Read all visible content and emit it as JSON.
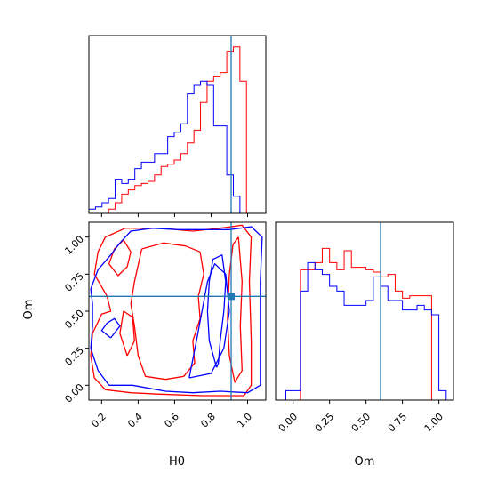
{
  "chart_data": {
    "type": "corner",
    "truth": {
      "H0": 0.91,
      "Om": 0.6
    },
    "colors": {
      "series_a": "#ff0000",
      "series_b": "#0000ff",
      "truth": "#1f77b4"
    },
    "panels": [
      {
        "id": "hist-h0",
        "type": "histogram",
        "xlim": [
          0.13,
          1.1
        ],
        "bin_edges": [
          0.13,
          0.166,
          0.202,
          0.238,
          0.274,
          0.31,
          0.346,
          0.382,
          0.418,
          0.454,
          0.49,
          0.526,
          0.562,
          0.598,
          0.634,
          0.67,
          0.706,
          0.742,
          0.778,
          0.814,
          0.85,
          0.886,
          0.922,
          0.958,
          0.994,
          1.03
        ],
        "series": [
          {
            "color": "red",
            "values": [
              0,
              0,
              0,
              2,
              5,
              9,
              11,
              13,
              14,
              15,
              18,
              22,
              23,
              25,
              28,
              33,
              39,
              52,
              62,
              64,
              66,
              76,
              78,
              62,
              0
            ]
          },
          {
            "color": "blue",
            "values": [
              2,
              3,
              5,
              7,
              16,
              14,
              16,
              21,
              24,
              24,
              28,
              28,
              36,
              38,
              42,
              56,
              60,
              62,
              60,
              41,
              41,
              18,
              8,
              0,
              0
            ]
          }
        ],
        "xticks": [
          0.2,
          0.4,
          0.6,
          0.8,
          1.0
        ]
      },
      {
        "id": "contour-h0-om",
        "type": "contour",
        "xlabel": "H0",
        "ylabel": "Om",
        "xlim": [
          0.13,
          1.1
        ],
        "ylim": [
          -0.1,
          1.1
        ],
        "xtick_labels": [
          "0.2",
          "0.4",
          "0.6",
          "0.8",
          "1.0"
        ],
        "xticks": [
          0.2,
          0.4,
          0.6,
          0.8,
          1.0
        ],
        "ytick_labels": [
          "0.00",
          "0.25",
          "0.50",
          "0.75",
          "1.00"
        ],
        "yticks": [
          0.0,
          0.25,
          0.5,
          0.75,
          1.0
        ],
        "contours": [
          {
            "color": "red",
            "points": [
              [
                0.36,
                -0.05
              ],
              [
                0.22,
                -0.03
              ],
              [
                0.16,
                0.05
              ],
              [
                0.14,
                0.2
              ],
              [
                0.15,
                0.35
              ],
              [
                0.2,
                0.48
              ],
              [
                0.25,
                0.5
              ],
              [
                0.23,
                0.6
              ],
              [
                0.16,
                0.75
              ],
              [
                0.18,
                0.9
              ],
              [
                0.22,
                1.0
              ],
              [
                0.33,
                1.06
              ],
              [
                0.52,
                1.06
              ],
              [
                0.7,
                1.04
              ],
              [
                0.85,
                1.06
              ],
              [
                0.97,
                1.08
              ],
              [
                1.02,
                1.0
              ],
              [
                1.01,
                0.7
              ],
              [
                1.02,
                0.3
              ],
              [
                1.02,
                0.0
              ],
              [
                0.98,
                -0.07
              ],
              [
                0.75,
                -0.07
              ],
              [
                0.52,
                -0.06
              ],
              [
                0.36,
                -0.05
              ]
            ]
          },
          {
            "color": "red",
            "points": [
              [
                0.32,
                0.98
              ],
              [
                0.27,
                0.92
              ],
              [
                0.24,
                0.82
              ],
              [
                0.29,
                0.74
              ],
              [
                0.34,
                0.8
              ],
              [
                0.36,
                0.9
              ],
              [
                0.32,
                0.98
              ]
            ]
          },
          {
            "color": "red",
            "points": [
              [
                0.42,
                0.92
              ],
              [
                0.54,
                0.96
              ],
              [
                0.66,
                0.94
              ],
              [
                0.74,
                0.9
              ],
              [
                0.76,
                0.75
              ],
              [
                0.73,
                0.6
              ],
              [
                0.74,
                0.45
              ],
              [
                0.7,
                0.3
              ],
              [
                0.71,
                0.15
              ],
              [
                0.65,
                0.06
              ],
              [
                0.55,
                0.04
              ],
              [
                0.44,
                0.06
              ],
              [
                0.4,
                0.2
              ],
              [
                0.38,
                0.4
              ],
              [
                0.36,
                0.55
              ],
              [
                0.38,
                0.7
              ],
              [
                0.42,
                0.92
              ]
            ]
          },
          {
            "color": "red",
            "points": [
              [
                0.95,
                1.0
              ],
              [
                0.97,
                0.7
              ],
              [
                0.96,
                0.4
              ],
              [
                0.97,
                0.1
              ],
              [
                0.93,
                0.02
              ],
              [
                0.9,
                0.2
              ],
              [
                0.89,
                0.45
              ],
              [
                0.9,
                0.75
              ],
              [
                0.92,
                0.95
              ],
              [
                0.95,
                1.0
              ]
            ]
          },
          {
            "color": "red",
            "points": [
              [
                0.34,
                0.2
              ],
              [
                0.3,
                0.35
              ],
              [
                0.32,
                0.5
              ],
              [
                0.37,
                0.46
              ],
              [
                0.38,
                0.3
              ],
              [
                0.34,
                0.2
              ]
            ]
          },
          {
            "color": "blue",
            "points": [
              [
                0.37,
                0.0
              ],
              [
                0.24,
                0.0
              ],
              [
                0.18,
                0.1
              ],
              [
                0.14,
                0.25
              ],
              [
                0.15,
                0.4
              ],
              [
                0.15,
                0.55
              ],
              [
                0.14,
                0.65
              ],
              [
                0.18,
                0.78
              ],
              [
                0.25,
                0.88
              ],
              [
                0.3,
                0.96
              ],
              [
                0.36,
                1.04
              ],
              [
                0.48,
                1.06
              ],
              [
                0.62,
                1.05
              ],
              [
                0.78,
                1.05
              ],
              [
                0.9,
                1.05
              ],
              [
                1.02,
                1.07
              ],
              [
                1.08,
                1.0
              ],
              [
                1.07,
                0.7
              ],
              [
                1.07,
                0.3
              ],
              [
                1.07,
                0.0
              ],
              [
                1.0,
                -0.05
              ],
              [
                0.85,
                -0.04
              ],
              [
                0.7,
                -0.05
              ],
              [
                0.55,
                -0.04
              ],
              [
                0.37,
                0.0
              ]
            ]
          },
          {
            "color": "blue",
            "points": [
              [
                0.83,
                0.12
              ],
              [
                0.79,
                0.3
              ],
              [
                0.78,
                0.5
              ],
              [
                0.79,
                0.7
              ],
              [
                0.81,
                0.85
              ],
              [
                0.86,
                0.88
              ],
              [
                0.88,
                0.7
              ],
              [
                0.87,
                0.5
              ],
              [
                0.85,
                0.3
              ],
              [
                0.84,
                0.15
              ],
              [
                0.83,
                0.12
              ]
            ]
          },
          {
            "color": "blue",
            "points": [
              [
                0.68,
                0.05
              ],
              [
                0.72,
                0.3
              ],
              [
                0.75,
                0.5
              ],
              [
                0.78,
                0.7
              ],
              [
                0.82,
                0.82
              ],
              [
                0.88,
                0.75
              ],
              [
                0.9,
                0.5
              ],
              [
                0.87,
                0.25
              ],
              [
                0.8,
                0.08
              ],
              [
                0.68,
                0.05
              ]
            ]
          },
          {
            "color": "blue",
            "points": [
              [
                0.25,
                0.32
              ],
              [
                0.2,
                0.37
              ],
              [
                0.23,
                0.42
              ],
              [
                0.27,
                0.45
              ],
              [
                0.3,
                0.4
              ],
              [
                0.25,
                0.32
              ]
            ]
          }
        ]
      },
      {
        "id": "hist-om",
        "type": "histogram",
        "xlabel": "Om",
        "xlim": [
          -0.12,
          1.1
        ],
        "xtick_labels": [
          "0.00",
          "0.25",
          "0.50",
          "0.75",
          "1.00"
        ],
        "xticks": [
          0.0,
          0.25,
          0.5,
          0.75,
          1.0
        ],
        "bin_edges": [
          -0.05,
          0.0,
          0.05,
          0.1,
          0.15,
          0.2,
          0.25,
          0.3,
          0.35,
          0.4,
          0.45,
          0.5,
          0.55,
          0.6,
          0.65,
          0.7,
          0.75,
          0.8,
          0.85,
          0.9,
          0.95,
          1.0,
          1.05
        ],
        "series": [
          {
            "color": "red",
            "values": [
              0,
              0,
              55,
              55,
              58,
              64,
              58,
              55,
              63,
              56,
              56,
              55,
              54,
              52,
              53,
              46,
              43,
              44,
              44,
              44,
              0,
              0
            ]
          },
          {
            "color": "blue",
            "values": [
              4,
              4,
              46,
              58,
              55,
              53,
              48,
              46,
              40,
              40,
              40,
              42,
              52,
              48,
              42,
              42,
              38,
              38,
              40,
              38,
              36,
              4
            ]
          }
        ]
      }
    ]
  }
}
